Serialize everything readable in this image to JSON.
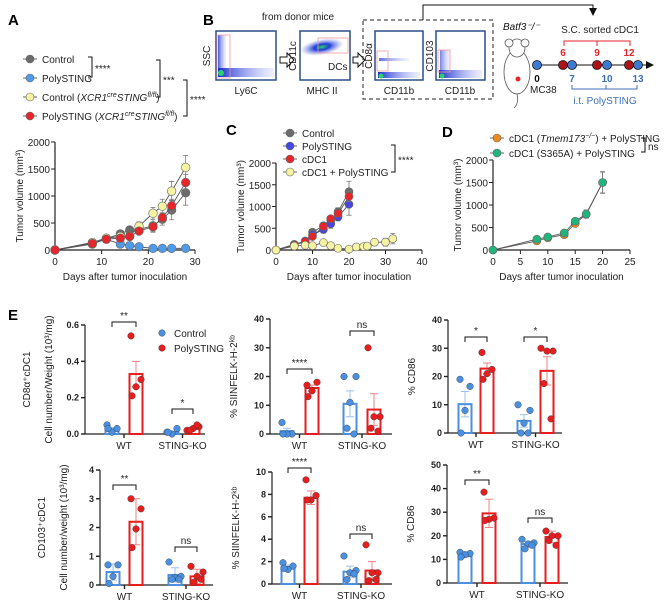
{
  "panel_labels": {
    "a": "A",
    "b": "B",
    "c": "C",
    "d": "D",
    "e": "E"
  },
  "colors": {
    "control_gray": "#6b6b6b",
    "polysting_lightblue": "#4f9be8",
    "yellow": "#f6f3a2",
    "red": "#e5262b",
    "polysting_blue": "#4646e6",
    "orange": "#f08a1e",
    "green": "#1fb57c",
    "e_control": "#4a90e2",
    "e_poly": "#e81d1d"
  },
  "panel_b": {
    "from_donor": "from donor mice",
    "plots": [
      {
        "ylabel": "SSC",
        "xlabel": "Ly6C"
      },
      {
        "ylabel": "CD11c",
        "xlabel": "MHC II",
        "gate": "DCs"
      },
      {
        "ylabel": "CD8α",
        "xlabel": "CD11b"
      },
      {
        "ylabel": "CD103",
        "xlabel": "CD11b"
      }
    ],
    "mouse_strain": "Batf3⁻/⁻",
    "tumor": "MC38",
    "sorted": "S.C.  sorted cDC1",
    "red_days": [
      "6",
      "9",
      "12"
    ],
    "blue_days": [
      "0",
      "7",
      "10",
      "13"
    ],
    "treatment": "i.t. PolySTING"
  },
  "chart_data": [
    {
      "id": "A",
      "type": "line",
      "title": "",
      "xlabel": "Days after tumor inoculation",
      "ylabel": "Tumor volume (mm³)",
      "xlim": [
        0,
        30
      ],
      "ylim": [
        0,
        2000
      ],
      "xticks": [
        "0",
        "10",
        "20",
        "30"
      ],
      "yticks": [
        "0",
        "500",
        "1000",
        "1500",
        "2000"
      ],
      "legend": [
        {
          "pre": "Control",
          "it1": "",
          "sup1": "",
          "it2": "",
          "sup2": "",
          "post": ""
        },
        {
          "pre": "PolySTING",
          "it1": "",
          "sup1": "",
          "it2": "",
          "sup2": "",
          "post": ""
        },
        {
          "pre": "Control (",
          "it1": "XCR1",
          "sup1": "cre",
          "it2": "STING",
          "sup2": "fl/fl",
          "post": ")"
        },
        {
          "pre": "PolySTING (",
          "it1": "XCR1",
          "sup1": "cre",
          "it2": "STING",
          "sup2": "fl/fl",
          "post": ")"
        }
      ],
      "significance": [
        "****",
        "***",
        "****"
      ],
      "series": [
        {
          "name": "Control",
          "color": "#6b6b6b",
          "x": [
            0,
            8,
            11,
            14,
            16,
            18,
            21,
            23,
            25,
            28
          ],
          "y": [
            0,
            110,
            210,
            300,
            370,
            380,
            450,
            570,
            740,
            1060
          ],
          "err": [
            0,
            20,
            30,
            40,
            40,
            60,
            120,
            110,
            180,
            230
          ]
        },
        {
          "name": "PolySTING",
          "color": "#4f9be8",
          "x": [
            0,
            8,
            11,
            14,
            16,
            18,
            21,
            23,
            25,
            28
          ],
          "y": [
            0,
            130,
            200,
            110,
            80,
            60,
            30,
            30,
            30,
            30
          ],
          "err": [
            0,
            20,
            20,
            20,
            15,
            10,
            10,
            10,
            10,
            10
          ]
        },
        {
          "name": "Control (XCR1cre STINGfl/fl)",
          "color": "#f6f3a2",
          "x": [
            0,
            8,
            11,
            14,
            16,
            18,
            21,
            23,
            25,
            28
          ],
          "y": [
            0,
            140,
            220,
            250,
            260,
            440,
            680,
            810,
            1090,
            1530
          ],
          "err": [
            0,
            20,
            30,
            40,
            40,
            80,
            110,
            130,
            180,
            220
          ]
        },
        {
          "name": "PolySTING (XCR1cre STINGfl/fl)",
          "color": "#e5262b",
          "x": [
            0,
            8,
            11,
            14,
            16,
            18,
            21,
            23,
            25,
            28
          ],
          "y": [
            0,
            120,
            200,
            220,
            250,
            350,
            430,
            600,
            820,
            1250
          ],
          "err": [
            0,
            20,
            30,
            30,
            30,
            50,
            80,
            90,
            120,
            150
          ]
        }
      ]
    },
    {
      "id": "C",
      "type": "line",
      "xlabel": "Days after tumor inoculation",
      "ylabel": "Tumor volume (mm³)",
      "xlim": [
        0,
        40
      ],
      "ylim": [
        0,
        2000
      ],
      "xticks": [
        "0",
        "10",
        "20",
        "30",
        "40"
      ],
      "yticks": [
        "0",
        "500",
        "1000",
        "1500",
        "2000"
      ],
      "legend": [
        {
          "pre": "Control"
        },
        {
          "pre": "PolySTING"
        },
        {
          "pre": "cDC1"
        },
        {
          "pre": "cDC1 + PolySTING"
        }
      ],
      "significance": [
        "****"
      ],
      "series": [
        {
          "name": "Control",
          "color": "#6b6b6b",
          "x": [
            0,
            5,
            8,
            10,
            13,
            15,
            17,
            20
          ],
          "y": [
            0,
            130,
            190,
            410,
            560,
            680,
            880,
            1340
          ],
          "err": [
            0,
            20,
            30,
            50,
            60,
            80,
            90,
            240
          ]
        },
        {
          "name": "PolySTING",
          "color": "#4646e6",
          "x": [
            0,
            5,
            8,
            10,
            13,
            15,
            17,
            20
          ],
          "y": [
            0,
            120,
            210,
            350,
            470,
            600,
            760,
            1050
          ],
          "err": [
            0,
            20,
            30,
            40,
            80,
            100,
            90,
            250
          ]
        },
        {
          "name": "cDC1",
          "color": "#e5262b",
          "x": [
            0,
            5,
            8,
            10,
            13,
            15,
            17,
            20
          ],
          "y": [
            0,
            110,
            190,
            310,
            540,
            720,
            840,
            1230
          ],
          "err": [
            0,
            20,
            30,
            40,
            50,
            70,
            80,
            120
          ]
        },
        {
          "name": "cDC1 + PolySTING",
          "color": "#f6f3a2",
          "x": [
            0,
            5,
            8,
            10,
            13,
            15,
            17,
            20,
            22,
            24,
            25,
            27,
            30,
            32
          ],
          "y": [
            0,
            90,
            110,
            100,
            170,
            100,
            40,
            20,
            70,
            80,
            90,
            180,
            180,
            260
          ],
          "err": [
            0,
            20,
            20,
            20,
            30,
            20,
            20,
            10,
            20,
            30,
            30,
            70,
            90,
            120
          ]
        }
      ]
    },
    {
      "id": "D",
      "type": "line",
      "xlabel": "Days after tumor inoculation",
      "ylabel": "Tumor volume (mm³)",
      "xlim": [
        0,
        25
      ],
      "ylim": [
        0,
        2000
      ],
      "xticks": [
        "0",
        "5",
        "10",
        "15",
        "20",
        "25"
      ],
      "yticks": [
        "0",
        "500",
        "1000",
        "1500",
        "2000"
      ],
      "legend": [
        {
          "pre": "cDC1 (",
          "it1": "Tmem173",
          "sup1": "−/−",
          "post": ") + PolySTING"
        },
        {
          "pre": "cDC1 (S365A) + PolySTING",
          "it1": "",
          "sup1": "",
          "post": ""
        }
      ],
      "significance": [
        "ns"
      ],
      "series": [
        {
          "name": "cDC1 (Tmem173-/-) + PolySTING",
          "color": "#f08a1e",
          "x": [
            0,
            8,
            10,
            13,
            15,
            17,
            20
          ],
          "y": [
            0,
            200,
            270,
            340,
            590,
            790,
            1500
          ],
          "err": [
            0,
            30,
            30,
            40,
            50,
            70,
            230
          ]
        },
        {
          "name": "cDC1 (S365A) + PolySTING",
          "color": "#1fb57c",
          "x": [
            0,
            8,
            10,
            13,
            15,
            17,
            20
          ],
          "y": [
            0,
            240,
            290,
            380,
            640,
            800,
            1500
          ],
          "err": [
            0,
            30,
            30,
            40,
            50,
            90,
            240
          ]
        }
      ]
    },
    {
      "id": "E1",
      "type": "bar",
      "title": "CD8α⁺cDC1",
      "ylabel": "Cell number/Weight (10³/mg)",
      "ylim": [
        0,
        0.6
      ],
      "yticks": [
        "0.0",
        "0.2",
        "0.4",
        "0.6"
      ],
      "categories": [
        "WT",
        "STING-KO"
      ],
      "legend": [
        "Control",
        "PolySTING"
      ],
      "significance": [
        "**",
        "*"
      ],
      "series": [
        {
          "name": "Control",
          "color": "#4a90e2",
          "values": [
            0.025,
            0.01
          ],
          "err": [
            0.01,
            0.005
          ],
          "points": [
            [
              0.05,
              0.03,
              0.01,
              0.03
            ],
            [
              0.01,
              0.03,
              0.0,
              0.01
            ]
          ]
        },
        {
          "name": "PolySTING",
          "color": "#e81d1d",
          "values": [
            0.33,
            0.03
          ],
          "err": [
            0.07,
            0.006
          ],
          "points": [
            [
              0.54,
              0.3,
              0.26,
              0.21
            ],
            [
              0.02,
              0.04,
              0.03,
              0.02,
              0.05
            ]
          ]
        }
      ]
    },
    {
      "id": "E2",
      "type": "bar",
      "title": "",
      "ylabel": "% SIINFELK-H-2ᵏᵇ",
      "ylim": [
        0,
        40
      ],
      "yticks": [
        "0",
        "10",
        "20",
        "30",
        "40"
      ],
      "categories": [
        "WT",
        "STING-KO"
      ],
      "significance": [
        "****",
        "ns"
      ],
      "series": [
        {
          "name": "Control",
          "color": "#4a90e2",
          "values": [
            1,
            10.5
          ],
          "err": [
            1,
            4.5
          ],
          "points": [
            [
              4,
              0,
              0,
              0
            ],
            [
              20,
              20,
              11,
              2,
              0
            ]
          ]
        },
        {
          "name": "PolySTING",
          "color": "#e81d1d",
          "values": [
            16,
            8.5
          ],
          "err": [
            1,
            5.5
          ],
          "points": [
            [
              17,
              18,
              15,
              13
            ],
            [
              30,
              6,
              6,
              2,
              1
            ]
          ]
        }
      ]
    },
    {
      "id": "E3",
      "type": "bar",
      "title": "",
      "ylabel": "% CD86",
      "ylim": [
        0,
        40
      ],
      "yticks": [
        "0",
        "10",
        "20",
        "30",
        "40"
      ],
      "categories": [
        "WT",
        "STING-KO"
      ],
      "significance": [
        "*",
        "*"
      ],
      "series": [
        {
          "name": "Control",
          "color": "#4a90e2",
          "values": [
            10.2,
            4.3
          ],
          "err": [
            4.5,
            2.2
          ],
          "points": [
            [
              19,
              16.5,
              8,
              0
            ],
            [
              10,
              8,
              3.5,
              0,
              0
            ]
          ]
        },
        {
          "name": "PolySTING",
          "color": "#e81d1d",
          "values": [
            22.8,
            22
          ],
          "err": [
            2,
            5
          ],
          "points": [
            [
              28.5,
              22.5,
              21,
              19
            ],
            [
              30,
              29,
              29,
              17.5,
              5
            ]
          ]
        }
      ]
    },
    {
      "id": "E4",
      "type": "bar",
      "title": "CD103⁺cDC1",
      "ylabel": "Cell number/weight (10³/mg)",
      "ylim": [
        0,
        4
      ],
      "yticks": [
        "0",
        "1",
        "2",
        "3",
        "4"
      ],
      "categories": [
        "WT",
        "STING-KO"
      ],
      "significance": [
        "**",
        "ns"
      ],
      "series": [
        {
          "name": "Control",
          "color": "#4a90e2",
          "values": [
            0.45,
            0.35
          ],
          "err": [
            0.28,
            0.25
          ],
          "points": [
            [
              0.7,
              0.7,
              0.3,
              0.05
            ],
            [
              0.8,
              0.3,
              0.25,
              0.2,
              0.2
            ]
          ]
        },
        {
          "name": "PolySTING",
          "color": "#e81d1d",
          "values": [
            2.2,
            0.3
          ],
          "err": [
            0.8,
            0.25
          ],
          "points": [
            [
              3,
              2.65,
              1.95,
              1.3
            ],
            [
              0.65,
              0.45,
              0.3,
              0.1,
              0.2
            ]
          ]
        }
      ]
    },
    {
      "id": "E5",
      "type": "bar",
      "title": "",
      "ylabel": "% SIINFELK-H-2ᵏᵇ",
      "ylim": [
        0,
        10
      ],
      "yticks": [
        "0",
        "2",
        "4",
        "6",
        "8",
        "10"
      ],
      "categories": [
        "WT",
        "STING-KO"
      ],
      "significance": [
        "****",
        "ns"
      ],
      "series": [
        {
          "name": "Control",
          "color": "#4a90e2",
          "values": [
            1.5,
            1.1
          ],
          "err": [
            0.2,
            0.5
          ],
          "points": [
            [
              1.9,
              1.6,
              1.3,
              1.4
            ],
            [
              2.5,
              1.2,
              1.0,
              0.4,
              0.9
            ]
          ]
        },
        {
          "name": "PolySTING",
          "color": "#e81d1d",
          "values": [
            7.7,
            1.2
          ],
          "err": [
            0.6,
            0.8
          ],
          "points": [
            [
              9.3,
              7.9,
              7.5,
              7.5
            ],
            [
              3.5,
              1.0,
              1.0,
              0.3,
              0.4
            ]
          ]
        }
      ]
    },
    {
      "id": "E6",
      "type": "bar",
      "title": "",
      "ylabel": "% CD86",
      "ylim": [
        0,
        50
      ],
      "yticks": [
        "0",
        "10",
        "20",
        "30",
        "40",
        "50"
      ],
      "categories": [
        "WT",
        "STING-KO"
      ],
      "significance": [
        "**",
        "ns"
      ],
      "series": [
        {
          "name": "Control",
          "color": "#4a90e2",
          "values": [
            12,
            16.5
          ],
          "err": [
            1,
            1.2
          ],
          "points": [
            [
              13,
              12.5,
              12,
              11
            ],
            [
              18.5,
              17,
              16.5,
              14.5,
              16
            ]
          ]
        },
        {
          "name": "PolySTING",
          "color": "#e81d1d",
          "values": [
            29.5,
            19.5
          ],
          "err": [
            6,
            2.5
          ],
          "points": [
            [
              38.5,
              27.5,
              27,
              26.5
            ],
            [
              22,
              20,
              20,
              18,
              16
            ]
          ]
        }
      ]
    }
  ]
}
